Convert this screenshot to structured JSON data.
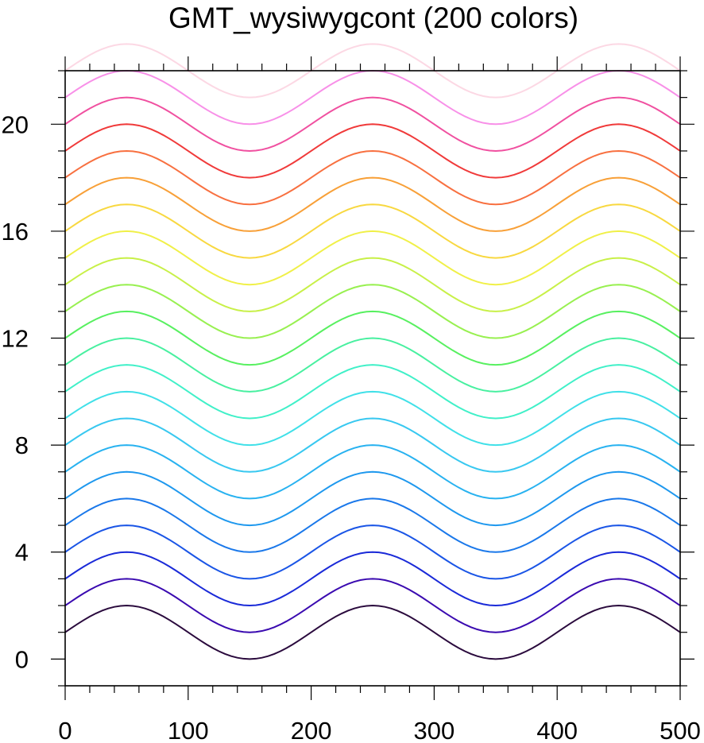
{
  "chart_data": {
    "type": "line",
    "title": "GMT_wysiwygcont (200 colors)",
    "xlabel": "",
    "ylabel": "",
    "xlim": [
      0,
      500
    ],
    "ylim": [
      -1,
      22
    ],
    "x_ticks": [
      "0",
      "100",
      "200",
      "300",
      "400",
      "500"
    ],
    "y_ticks": [
      "0",
      "4",
      "8",
      "12",
      "16",
      "20"
    ],
    "x_tick_values": [
      0,
      100,
      200,
      300,
      400,
      500
    ],
    "y_tick_values": [
      0,
      4,
      8,
      12,
      16,
      20
    ],
    "grid": false,
    "function": "y = 1 + sin(2*pi*(x-0)/200) + offset",
    "x_sample_step": 5,
    "series": [
      {
        "offset": 0,
        "color": "#2a0a3d"
      },
      {
        "offset": 1,
        "color": "#3a0ab0"
      },
      {
        "offset": 2,
        "color": "#1a2ad8"
      },
      {
        "offset": 3,
        "color": "#1a55e6"
      },
      {
        "offset": 4,
        "color": "#1a78ea"
      },
      {
        "offset": 5,
        "color": "#1e98ee"
      },
      {
        "offset": 6,
        "color": "#28b2f0"
      },
      {
        "offset": 7,
        "color": "#38c8f0"
      },
      {
        "offset": 8,
        "color": "#40e0e8"
      },
      {
        "offset": 9,
        "color": "#40f0c8"
      },
      {
        "offset": 10,
        "color": "#48f0a0"
      },
      {
        "offset": 11,
        "color": "#58f060"
      },
      {
        "offset": 12,
        "color": "#98f050"
      },
      {
        "offset": 13,
        "color": "#c8f048"
      },
      {
        "offset": 14,
        "color": "#f0f048"
      },
      {
        "offset": 15,
        "color": "#f8d840"
      },
      {
        "offset": 16,
        "color": "#f8a038"
      },
      {
        "offset": 17,
        "color": "#f87040"
      },
      {
        "offset": 18,
        "color": "#f03a3a"
      },
      {
        "offset": 19,
        "color": "#f050a0"
      },
      {
        "offset": 20,
        "color": "#f890e8"
      },
      {
        "offset": 21,
        "color": "#fcd8e4"
      }
    ]
  }
}
